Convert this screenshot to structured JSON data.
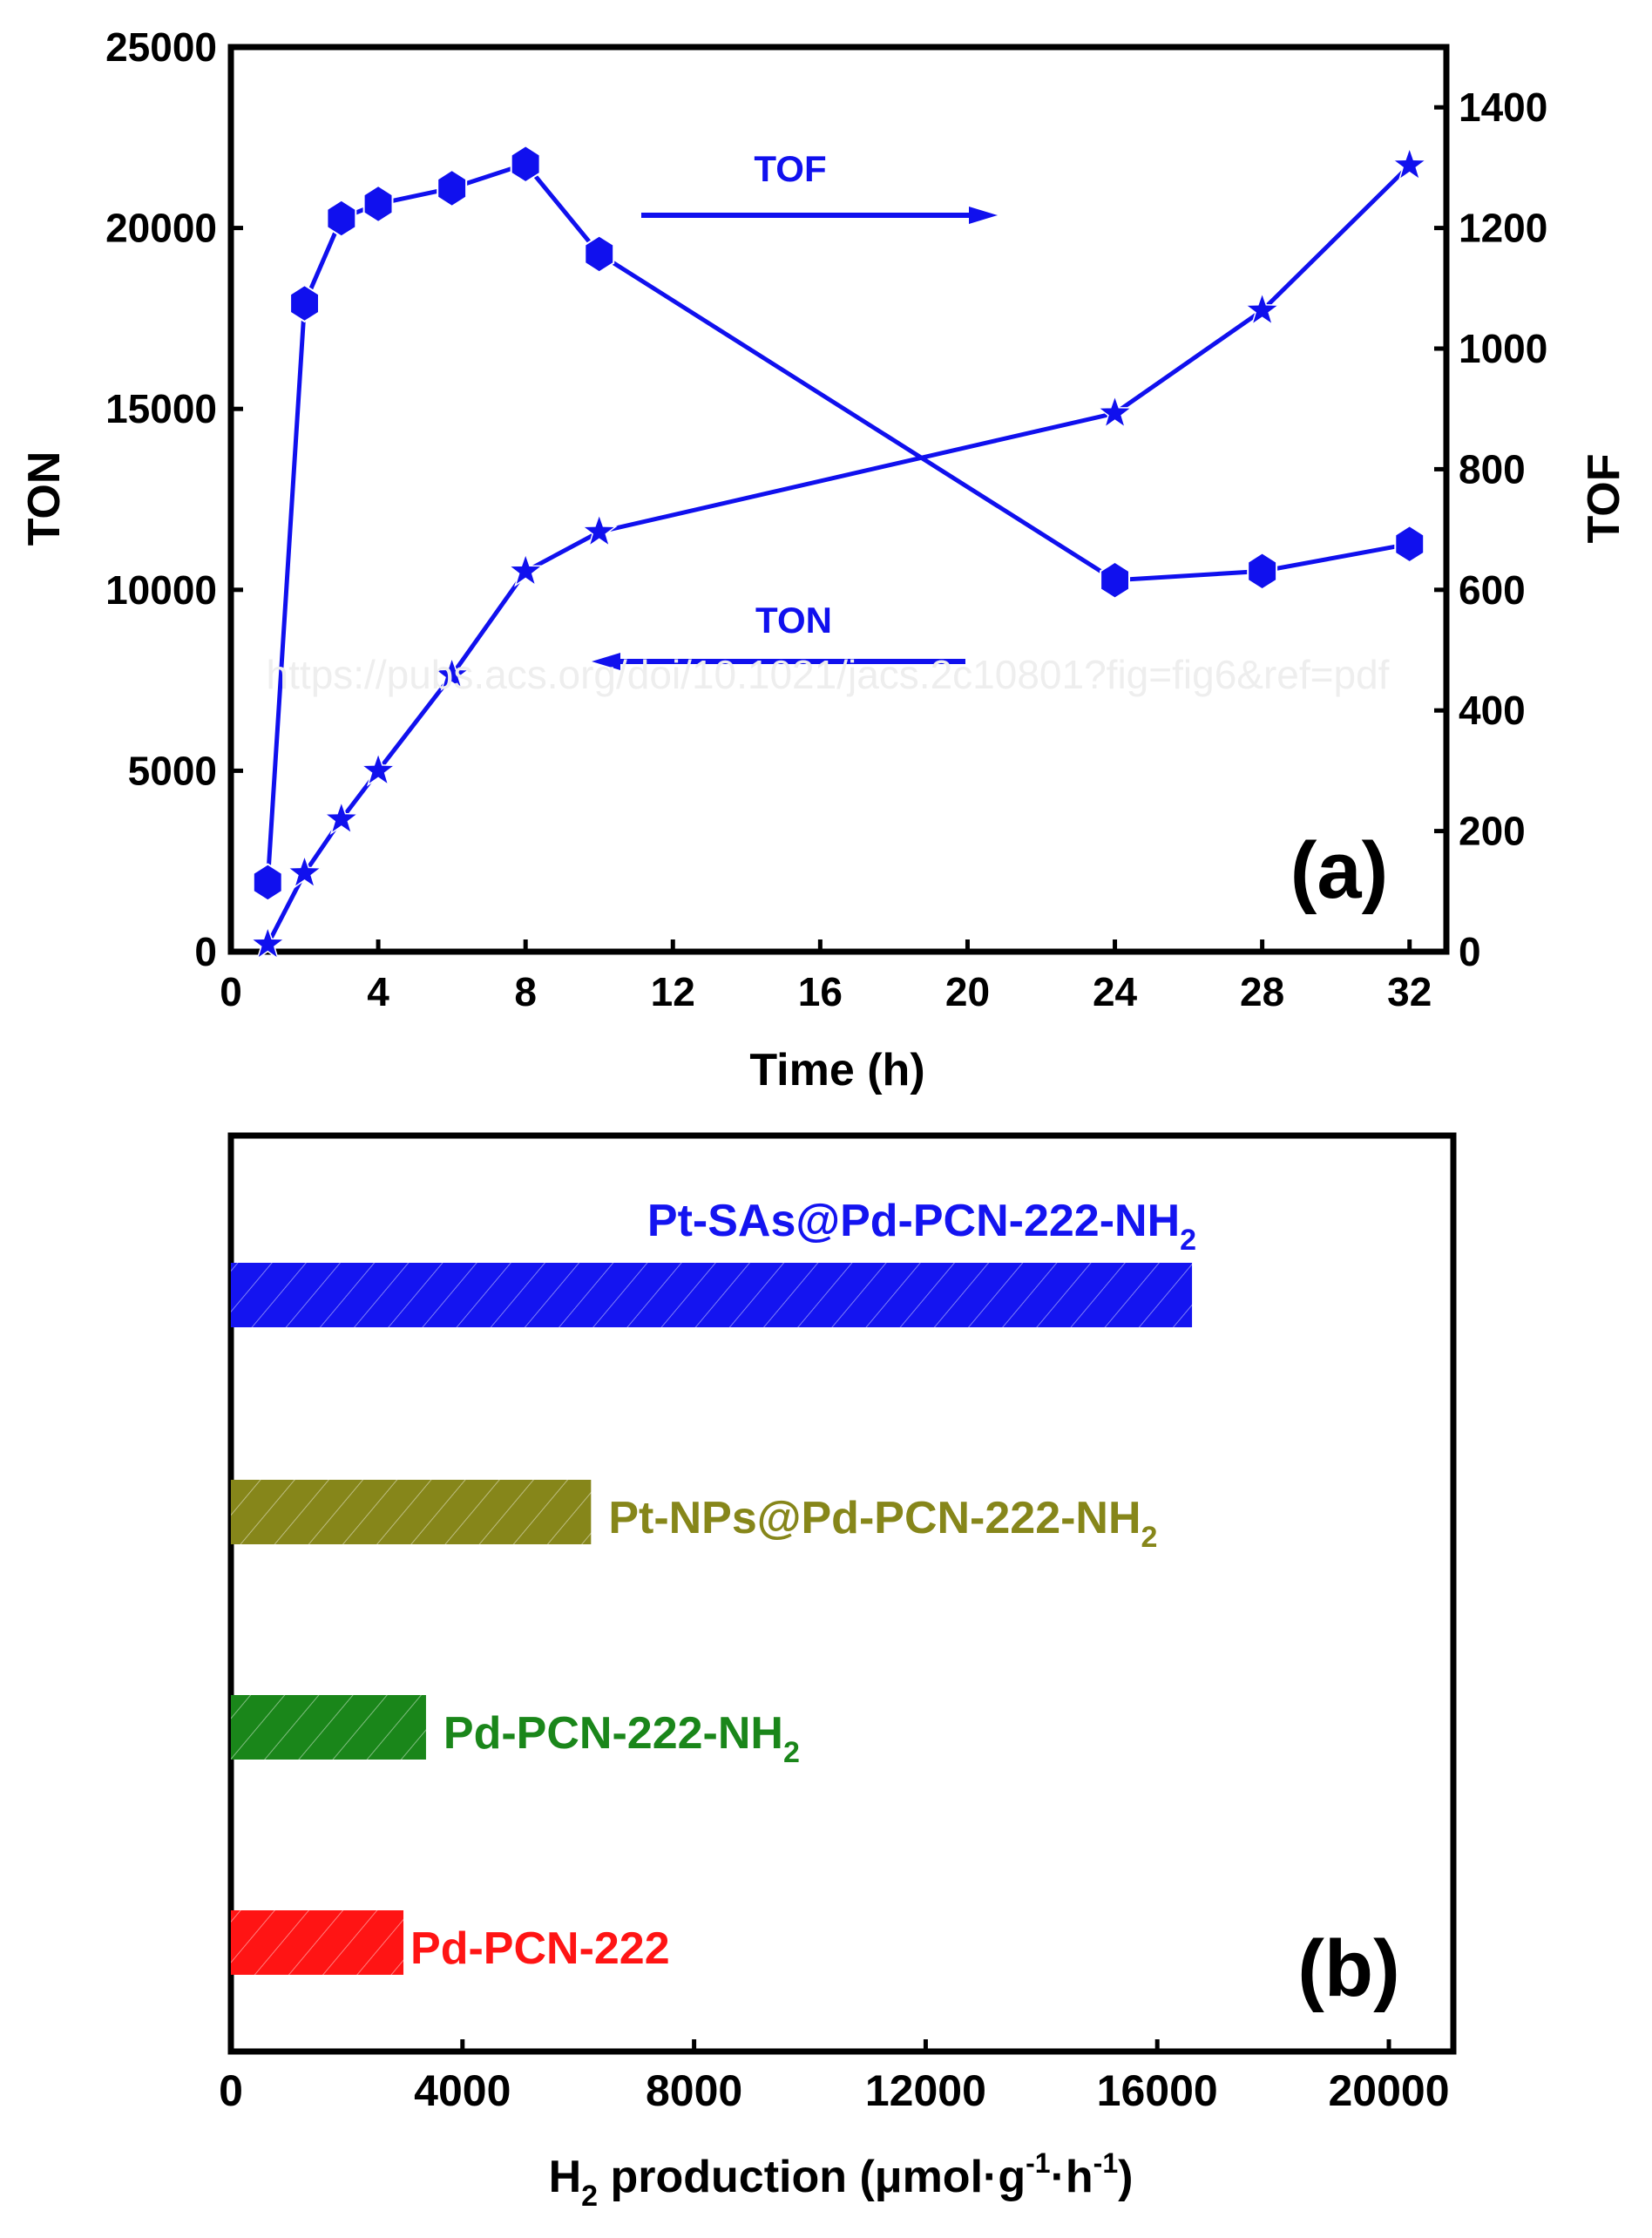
{
  "watermark": "https://pubs.acs.org/doi/10.1021/jacs.2c10801?fig=fig6&ref=pdf",
  "chart_data": [
    {
      "panel": "(a)",
      "type": "line",
      "xlabel": "Time (h)",
      "ylabel": "TON",
      "ylabel_right": "TOF",
      "xlim": [
        0,
        33
      ],
      "ylim": [
        0,
        25000
      ],
      "ylim_right": [
        0,
        1500
      ],
      "xticks": [
        "0",
        "4",
        "8",
        "12",
        "16",
        "20",
        "24",
        "28",
        "32"
      ],
      "yticks": [
        "0",
        "5000",
        "10000",
        "15000",
        "20000",
        "25000"
      ],
      "yticks_right": [
        "0",
        "200",
        "400",
        "600",
        "800",
        "1000",
        "1200",
        "1400"
      ],
      "grid": false,
      "color": "#1010ee",
      "annotations": [
        {
          "text": "TOF",
          "arrow": "right"
        },
        {
          "text": "TON",
          "arrow": "left"
        }
      ],
      "series": [
        {
          "name": "TON",
          "axis": "left",
          "marker": "star",
          "x": [
            1,
            2,
            3,
            4,
            6,
            8,
            10,
            24,
            28,
            32
          ],
          "y": [
            200,
            2170,
            3660,
            5000,
            7640,
            10510,
            11600,
            14880,
            17720,
            21730
          ]
        },
        {
          "name": "TOF",
          "axis": "right",
          "marker": "hexagon",
          "x": [
            1,
            2,
            3,
            4,
            6,
            8,
            10,
            24,
            28,
            32
          ],
          "y": [
            115,
            1075,
            1216,
            1240,
            1266,
            1306,
            1157,
            616,
            631,
            676
          ]
        }
      ]
    },
    {
      "panel": "(b)",
      "type": "bar",
      "orientation": "horizontal",
      "xlabel_main": "H",
      "xlabel_sub": "2",
      "xlabel_rest": " production (μmol·g",
      "xlabel_sup1": "-1",
      "xlabel_mid": "·h",
      "xlabel_sup2": "-1",
      "xlabel_end": ")",
      "xlim": [
        0,
        21100
      ],
      "xticks": [
        "0",
        "4000",
        "8000",
        "12000",
        "16000",
        "20000"
      ],
      "grid": false,
      "bars": [
        {
          "label": "Pt-SAs@Pd-PCN-222-NH",
          "sub": "2",
          "value": 16600,
          "color": "#1414f0"
        },
        {
          "label": "Pt-NPs@Pd-PCN-222-NH",
          "sub": "2",
          "value": 6220,
          "color": "#86861a"
        },
        {
          "label": "Pd-PCN-222-NH",
          "sub": "2",
          "value": 3370,
          "color": "#1a861a"
        },
        {
          "label": "Pd-PCN-222",
          "sub": "",
          "value": 2980,
          "color": "#ff1414"
        }
      ]
    }
  ]
}
